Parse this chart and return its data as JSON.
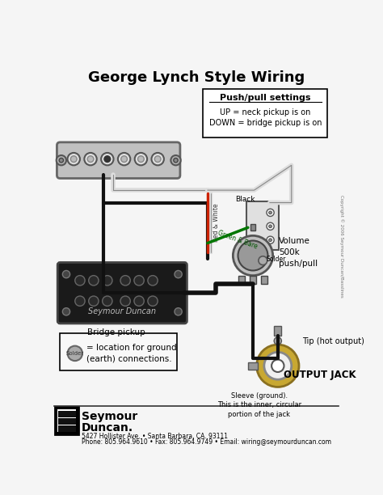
{
  "title": "George Lynch Style Wiring",
  "title_fontsize": 13,
  "bg_color": "#f5f5f5",
  "fig_width": 4.74,
  "fig_height": 6.12,
  "dpi": 100,
  "footer_text": "5427 Hollister Ave. • Santa Barbara, CA. 93111",
  "footer_text2": "Phone: 805.964.9610 • Fax: 805.964.9749 • Email: wiring@seymourduncan.com",
  "copyright_text": "Copyright © 2006 Seymour Duncan/Basslines",
  "pushpull_box_text": "Push/pull settings",
  "pushpull_text1": "UP = neck pickup is on",
  "pushpull_text2": "DOWN = bridge pickup is on",
  "volume_label": "Volume\n500k\npush/pull",
  "bridge_label": "Bridge pickup",
  "solder_legend_text": "= location for ground\n(earth) connections.",
  "black_label": "Black",
  "solder_label": "Solder",
  "red_white_label": "Red & White",
  "green_bare_label": "Green & Bare",
  "tip_label": "Tip (hot output)",
  "sleeve_label": "Sleeve (ground).\nThis is the inner, circular\nportion of the jack",
  "output_jack_label": "OUTPUT JACK",
  "neck_pickup_color": "#c0c0c0",
  "wire_black": "#111111",
  "wire_white": "#e8e8e8",
  "wire_red": "#cc2200",
  "wire_green": "#007700",
  "jack_gold": "#c8a832",
  "solder_dot_color": "#aaaaaa"
}
